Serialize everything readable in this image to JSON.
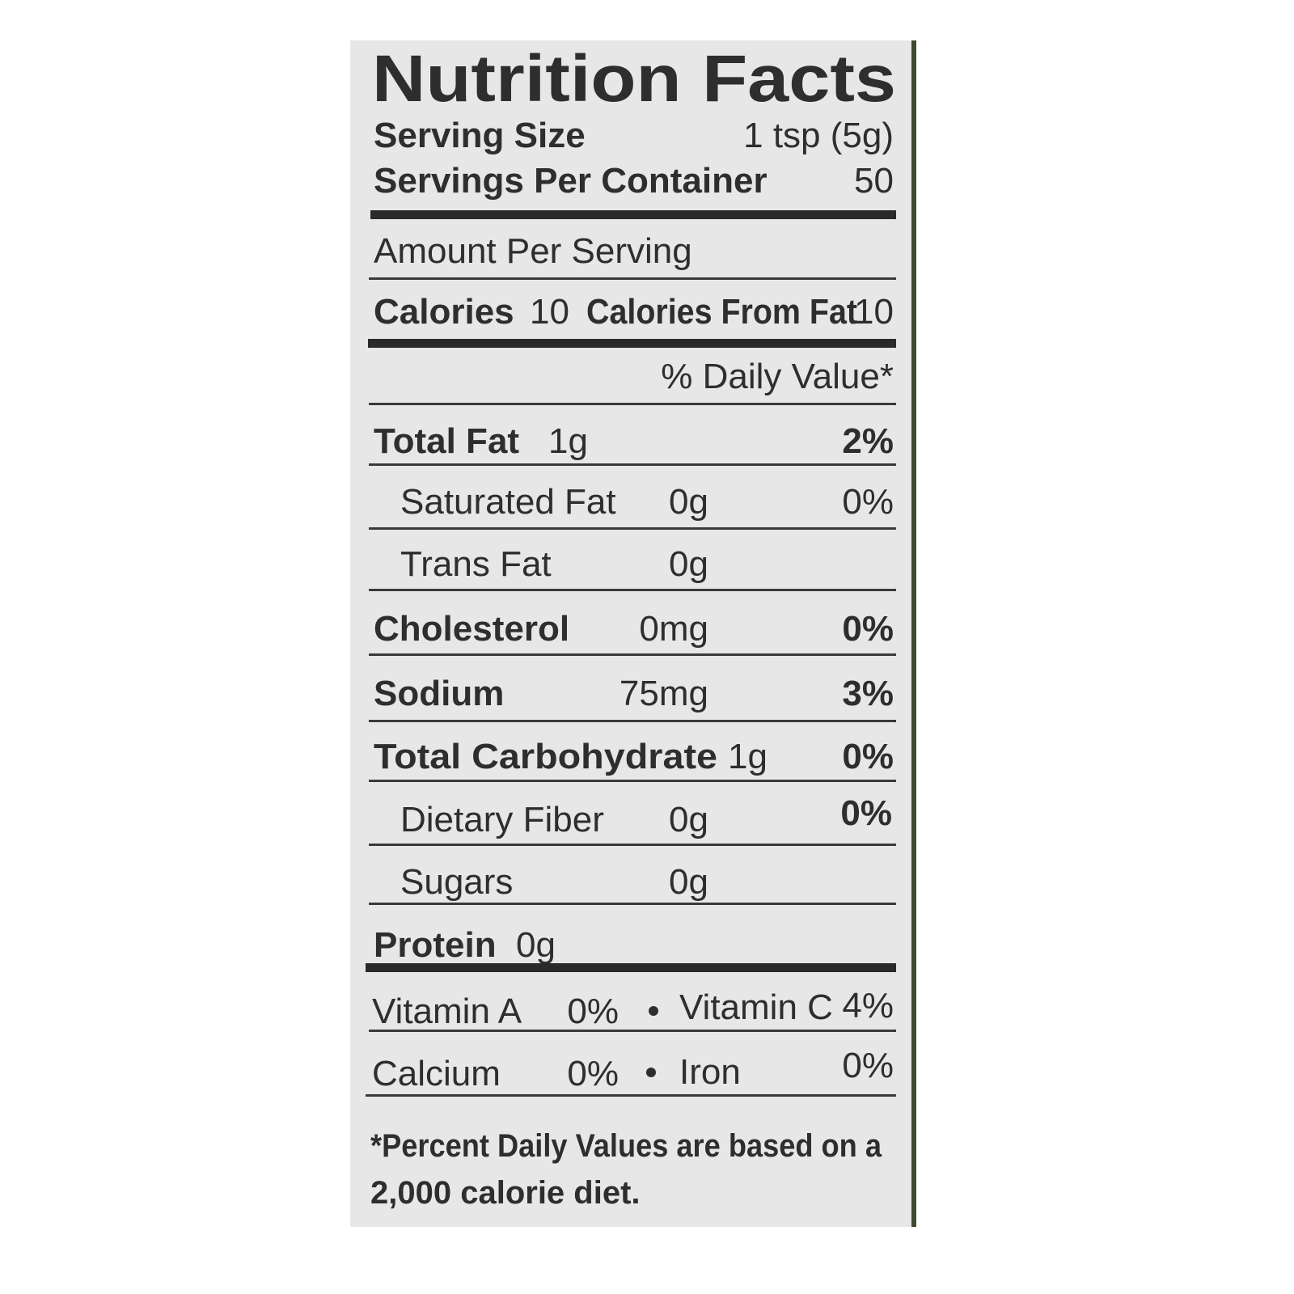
{
  "title": "Nutrition Facts",
  "serving_size": {
    "label": "Serving Size",
    "value": "1 tsp (5g)"
  },
  "servings_per_container": {
    "label": "Servings Per Container",
    "value": "50"
  },
  "amount_per_serving": "Amount Per Serving",
  "calories": {
    "label": "Calories",
    "value": "10",
    "from_fat_label": "Calories From Fat",
    "from_fat_value": "10"
  },
  "daily_value_header": "% Daily Value*",
  "nutrients": [
    {
      "name": "Total Fat",
      "amount": "1g",
      "dv": "2%"
    },
    {
      "name": "Saturated Fat",
      "amount": "0g",
      "dv": "0%"
    },
    {
      "name": "Trans Fat",
      "amount": "0g"
    },
    {
      "name": "Cholesterol",
      "amount": "0mg",
      "dv": "0%"
    },
    {
      "name": "Sodium",
      "amount": "75mg",
      "dv": "3%"
    },
    {
      "name": "Total Carbohydrate",
      "amount": "1g",
      "dv": "0%"
    },
    {
      "name": "Dietary Fiber",
      "amount": "0g",
      "dv": "0%"
    },
    {
      "name": "Sugars",
      "amount": "0g"
    },
    {
      "name": "Protein",
      "amount": "0g"
    }
  ],
  "vitamins": [
    [
      {
        "name": "Vitamin A",
        "dv": "0%"
      },
      {
        "name": "Vitamin C",
        "dv": "4%"
      }
    ],
    [
      {
        "name": "Calcium",
        "dv": "0%"
      },
      {
        "name": "Iron",
        "dv": "0%"
      }
    ]
  ],
  "footnote": [
    "*Percent Daily Values are based on a",
    "2,000 calorie diet."
  ]
}
